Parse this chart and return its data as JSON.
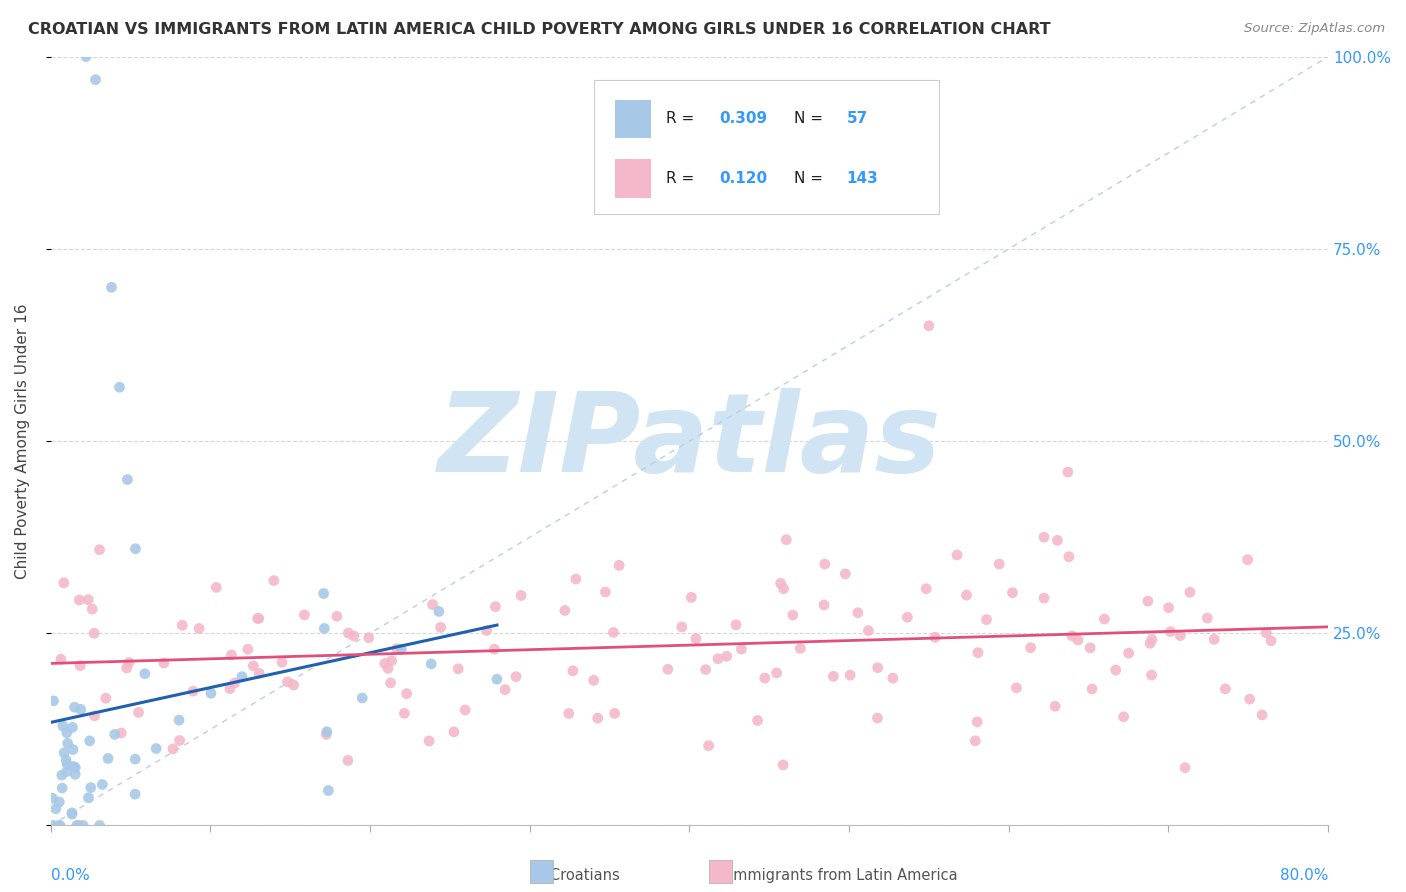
{
  "title": "CROATIAN VS IMMIGRANTS FROM LATIN AMERICA CHILD POVERTY AMONG GIRLS UNDER 16 CORRELATION CHART",
  "source": "Source: ZipAtlas.com",
  "ylabel": "Child Poverty Among Girls Under 16",
  "xlim": [
    0.0,
    0.8
  ],
  "ylim": [
    0.0,
    1.0
  ],
  "yticks": [
    0.0,
    0.25,
    0.5,
    0.75,
    1.0
  ],
  "ytick_labels": [
    "",
    "25.0%",
    "50.0%",
    "75.0%",
    "100.0%"
  ],
  "blue_R": 0.309,
  "blue_N": 57,
  "pink_R": 0.12,
  "pink_N": 143,
  "blue_dot_color": "#a8c8e8",
  "pink_dot_color": "#f4b8c8",
  "blue_line_color": "#2060b0",
  "pink_line_color": "#e0507a",
  "ref_line_color": "#b8d0e8",
  "watermark": "ZIPatlas",
  "watermark_color": "#d0e4f4",
  "legend_blue_label": "Croatians",
  "legend_pink_label": "Immigrants from Latin America",
  "background_color": "#ffffff",
  "grid_color": "#d8d8d8",
  "seed": 7
}
